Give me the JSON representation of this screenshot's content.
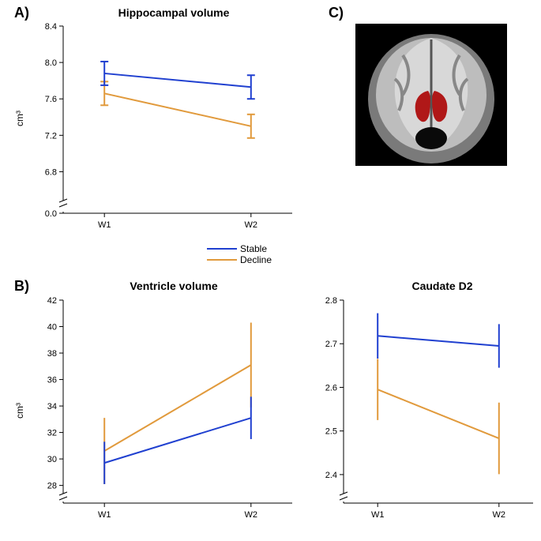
{
  "colors": {
    "stable": "#2040d0",
    "decline": "#e19a3c",
    "axis": "#000000",
    "background": "#ffffff"
  },
  "legend": {
    "stable": "Stable",
    "decline": "Decline"
  },
  "panels": {
    "A": {
      "label": "A)"
    },
    "B": {
      "label": "B)"
    },
    "C": {
      "label": "C)"
    }
  },
  "chartA": {
    "title": "Hippocampal volume",
    "ylabel": "cm³",
    "xticks": [
      "W1",
      "W2"
    ],
    "yticks": [
      0.0,
      6.8,
      7.2,
      7.6,
      8.0,
      8.4
    ],
    "ylim": [
      6.5,
      8.4
    ],
    "break_at": 6.5,
    "series": {
      "stable": {
        "y": [
          7.88,
          7.73
        ],
        "err": [
          0.13,
          0.13
        ]
      },
      "decline": {
        "y": [
          7.66,
          7.3
        ],
        "err": [
          0.13,
          0.13
        ]
      }
    },
    "line_width": 2,
    "cap_width": 5
  },
  "chartB": {
    "title": "Ventricle volume",
    "ylabel": "cm³",
    "xticks": [
      "W1",
      "W2"
    ],
    "yticks": [
      28,
      30,
      32,
      34,
      36,
      38,
      40,
      42
    ],
    "ylim": [
      27.5,
      42
    ],
    "break_at": 27.5,
    "series": {
      "stable": {
        "y": [
          29.7,
          33.1
        ],
        "err": [
          1.6,
          1.6
        ]
      },
      "decline": {
        "y": [
          30.6,
          37.1
        ],
        "err": [
          2.5,
          3.2
        ]
      }
    },
    "line_width": 2,
    "cap_width": 0
  },
  "chartD": {
    "title": "Caudate D2",
    "ylabel": "",
    "xticks": [
      "W1",
      "W2"
    ],
    "yticks": [
      2.4,
      2.5,
      2.6,
      2.7,
      2.8
    ],
    "ylim": [
      2.36,
      2.8
    ],
    "break_at": 2.36,
    "series": {
      "stable": {
        "y": [
          2.718,
          2.695
        ],
        "err": [
          0.052,
          0.05
        ]
      },
      "decline": {
        "y": [
          2.595,
          2.483
        ],
        "err": [
          0.07,
          0.082
        ]
      }
    },
    "line_width": 2,
    "cap_width": 0
  }
}
